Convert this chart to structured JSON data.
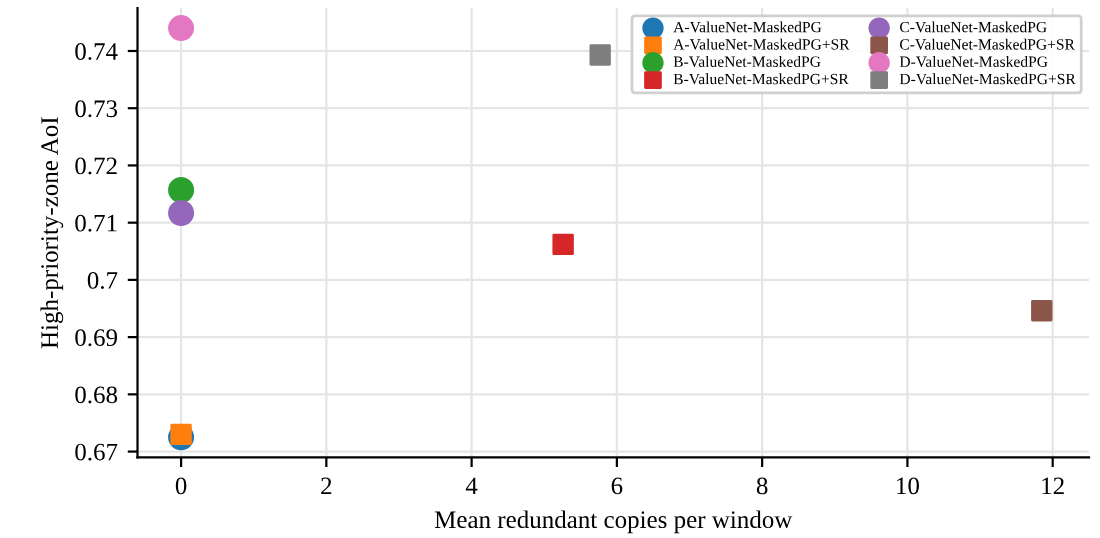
{
  "chart_data": {
    "type": "scatter",
    "xlabel": "Mean redundant copies per window",
    "ylabel": "High-priority-zone AoI",
    "xlim": [
      -0.6,
      12.5
    ],
    "ylim": [
      0.669,
      0.7475
    ],
    "xticks": [
      0,
      2,
      4,
      6,
      8,
      10,
      12
    ],
    "yticks": [
      0.67,
      0.68,
      0.69,
      0.7,
      0.71,
      0.72,
      0.73,
      0.74
    ],
    "grid": true,
    "legend": "top right",
    "series": [
      {
        "name": "A-ValueNet-MaskedPG",
        "color": "#1f77b4",
        "marker": "circle",
        "x": [
          0
        ],
        "values": [
          0.6725
        ]
      },
      {
        "name": "A-ValueNet-MaskedPG+SR",
        "color": "#ff7f0e",
        "marker": "square",
        "x": [
          0
        ],
        "values": [
          0.673
        ]
      },
      {
        "name": "B-ValueNet-MaskedPG",
        "color": "#2ca02c",
        "marker": "circle",
        "x": [
          0
        ],
        "values": [
          0.7157
        ]
      },
      {
        "name": "B-ValueNet-MaskedPG+SR",
        "color": "#d62728",
        "marker": "square",
        "x": [
          5.26
        ],
        "values": [
          0.7062
        ]
      },
      {
        "name": "C-ValueNet-MaskedPG",
        "color": "#9467bd",
        "marker": "circle",
        "x": [
          0
        ],
        "values": [
          0.7117
        ]
      },
      {
        "name": "C-ValueNet-MaskedPG+SR",
        "color": "#8c564b",
        "marker": "square",
        "x": [
          11.85
        ],
        "values": [
          0.6946
        ]
      },
      {
        "name": "D-ValueNet-MaskedPG",
        "color": "#e377c2",
        "marker": "circle",
        "x": [
          0
        ],
        "values": [
          0.744
        ]
      },
      {
        "name": "D-ValueNet-MaskedPG+SR",
        "color": "#7f7f7f",
        "marker": "square",
        "x": [
          5.77
        ],
        "values": [
          0.7393
        ]
      }
    ]
  }
}
